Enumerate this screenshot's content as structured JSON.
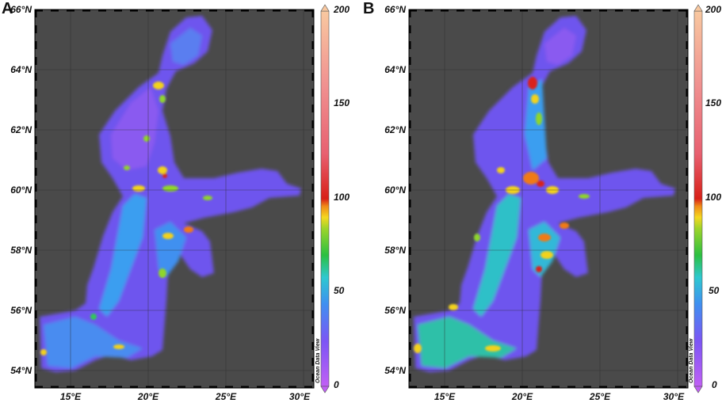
{
  "panels": [
    {
      "label": "A",
      "lat_labels": [
        "66°N",
        "64°N",
        "62°N",
        "60°N",
        "58°N",
        "56°N",
        "54°N"
      ],
      "lon_labels": [
        "15°E",
        "20°E",
        "25°E",
        "30°E"
      ],
      "colorbar_ticks": [
        "200",
        "150",
        "100",
        "50",
        "0"
      ],
      "credit": "Ocean Data View"
    },
    {
      "label": "B",
      "lat_labels": [
        "66°N",
        "64°N",
        "62°N",
        "60°N",
        "58°N",
        "56°N",
        "54°N"
      ],
      "lon_labels": [
        "15°E",
        "20°E",
        "25°E",
        "30°E"
      ],
      "colorbar_ticks": [
        "200",
        "150",
        "100",
        "50",
        "0"
      ],
      "credit": "Ocean Data View"
    }
  ],
  "map": {
    "lat_range": [
      53.5,
      66
    ],
    "lon_range": [
      13,
      31
    ],
    "colorbar_range": [
      0,
      200
    ],
    "colormap": [
      "#b75cf0",
      "#7c55f5",
      "#4d7ff2",
      "#2ec0d8",
      "#30c85a",
      "#8fd62a",
      "#f2d21e",
      "#f07a14",
      "#d8201e",
      "#f08080",
      "#f8c8a8"
    ],
    "land_color": "#4a4a4a",
    "gridlines": true
  }
}
